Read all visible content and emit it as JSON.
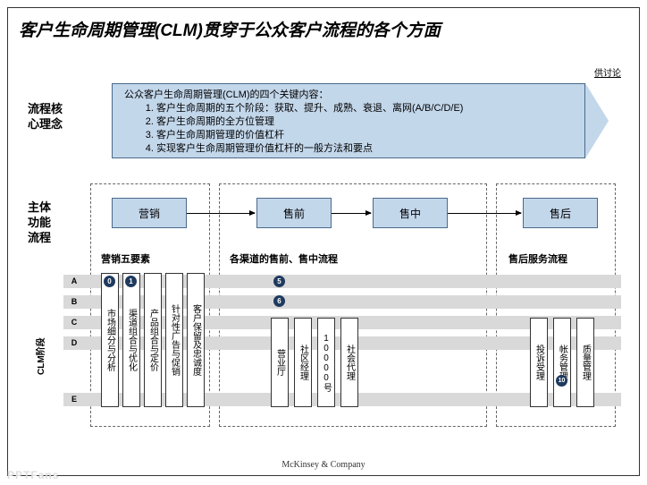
{
  "title": "客户生命周期管理(CLM)贯穿于公众客户流程的各个方面",
  "legend": "供讨论",
  "side": {
    "concept": "流程核\n心理念",
    "flow": "主体\n功能\n流程",
    "clm": "CLM阶段"
  },
  "banner": {
    "lead": "公众客户生命周期管理(CLM)的四个关键内容：",
    "items": [
      "客户生命周期的五个阶段：获取、提升、成熟、衰退、离网(A/B/C/D/E)",
      "客户生命周期的全方位管理",
      "客户生命周期管理的价值杠杆",
      "实现客户生命周期管理价值杠杆的一般方法和要点"
    ]
  },
  "flow": {
    "b1": "营销",
    "b2": "售前",
    "b3": "售中",
    "b4": "售后"
  },
  "sub": {
    "s1": "营销五要素",
    "s2": "各渠道的售前、售中流程",
    "s3": "售后服务流程"
  },
  "lanes": [
    "A",
    "B",
    "C",
    "D",
    "E"
  ],
  "col1": [
    "市场细分与分析",
    "渠道组合与优化",
    "产品组合与定价",
    "针对性广告与促销",
    "客户保留及忠诚度"
  ],
  "col2": [
    "营业厅",
    "社区经理",
    "10000号",
    "社会代理"
  ],
  "col3": [
    "投诉受理",
    "帐务管理",
    "质量管理"
  ],
  "dots": {
    "d0": "0",
    "d1": "1",
    "d5": "5",
    "d6": "6",
    "d10": "10"
  },
  "footer": "McKinsey & Company",
  "watermark": "PPTFans",
  "colors": {
    "box_fill": "#c3d7eb",
    "box_border": "#4a6a8a",
    "lane": "#d9d9d9"
  }
}
